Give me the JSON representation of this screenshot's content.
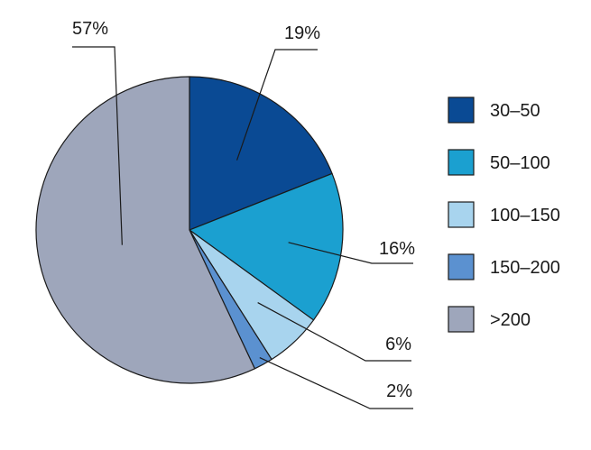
{
  "chart_data": {
    "type": "pie",
    "categories": [
      "30–50",
      "50–100",
      "100–150",
      "150–200",
      ">200"
    ],
    "values": [
      19,
      16,
      6,
      2,
      57
    ],
    "data_labels": [
      "19%",
      "16%",
      "6%",
      "2%",
      "57%"
    ],
    "colors": [
      "#0a4a94",
      "#1ba0d0",
      "#a8d4ee",
      "#5b91d0",
      "#9ea6bb"
    ],
    "unit": "%",
    "title": "",
    "legend": {
      "placement": "right",
      "entries": [
        "30–50",
        "50–100",
        "100–150",
        "150–200",
        ">200"
      ]
    },
    "start_angle_deg": 0,
    "direction": "clockwise"
  }
}
